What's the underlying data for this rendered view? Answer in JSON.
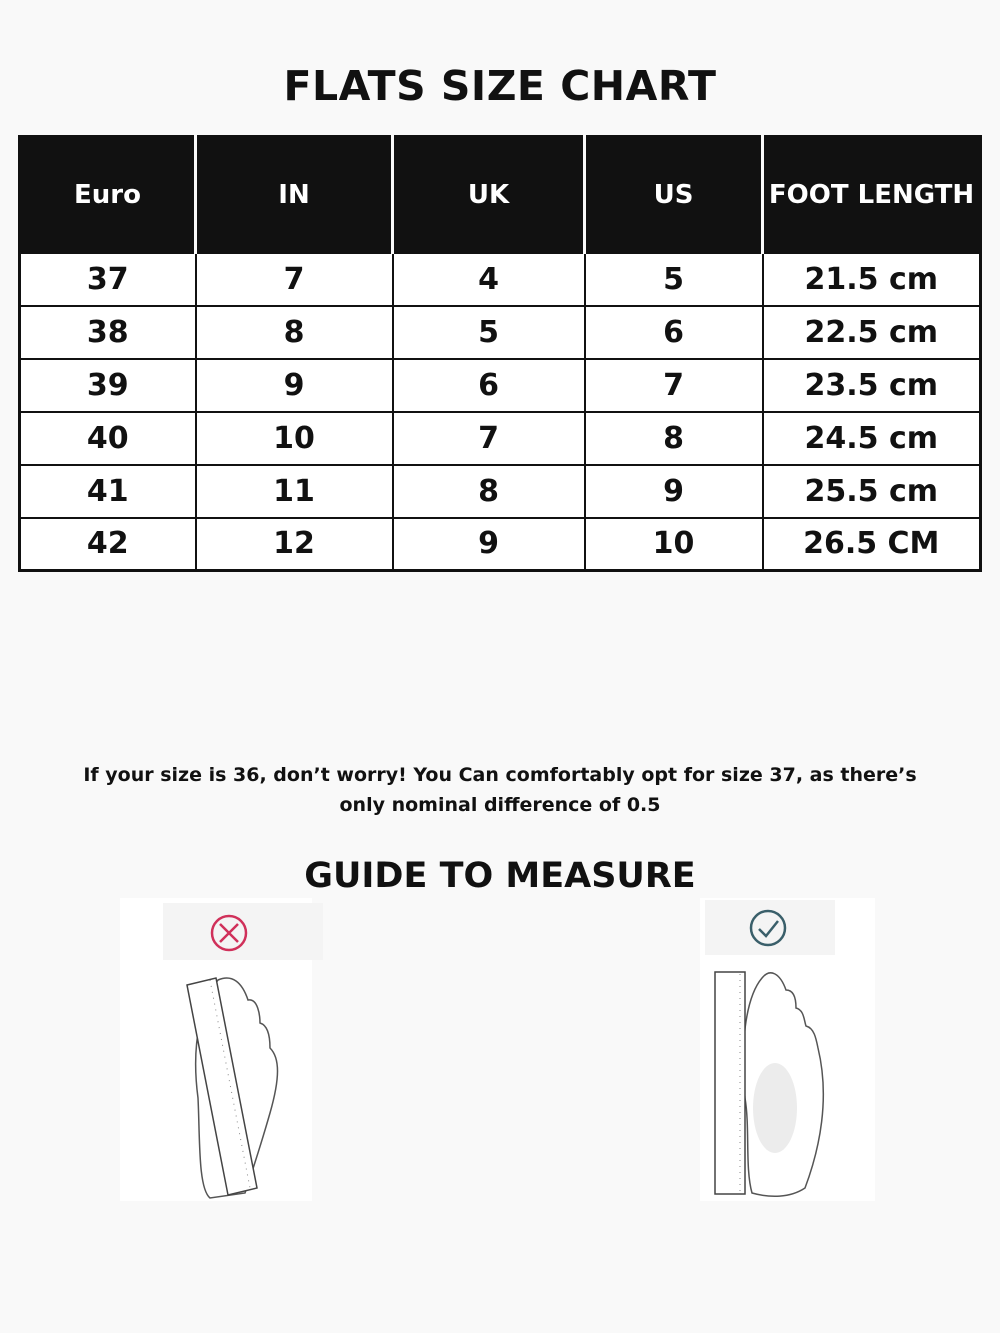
{
  "title": "FLATS SIZE CHART",
  "table": {
    "headers": [
      "Euro",
      "IN",
      "UK",
      "US",
      "FOOT LENGTH"
    ],
    "rows": [
      [
        "37",
        "7",
        "4",
        "5",
        "21.5 cm"
      ],
      [
        "38",
        "8",
        "5",
        "6",
        "22.5 cm"
      ],
      [
        "39",
        "9",
        "6",
        "7",
        "23.5 cm"
      ],
      [
        "40",
        "10",
        "7",
        "8",
        "24.5 cm"
      ],
      [
        "41",
        "11",
        "8",
        "9",
        "25.5 cm"
      ],
      [
        "42",
        "12",
        "9",
        "10",
        "26.5 CM"
      ]
    ]
  },
  "note": {
    "line1": "If your size is 36, don’t worry! You Can comfortably opt for size 37, as there’s",
    "line2": "only nominal difference of 0.5"
  },
  "guide_title": "GUIDE TO MEASURE",
  "illustrations": [
    {
      "icon": "x-circle-icon",
      "color": "#d0305a",
      "meaning": "incorrect"
    },
    {
      "icon": "check-circle-icon",
      "color": "#3a5f6a",
      "meaning": "correct"
    }
  ]
}
